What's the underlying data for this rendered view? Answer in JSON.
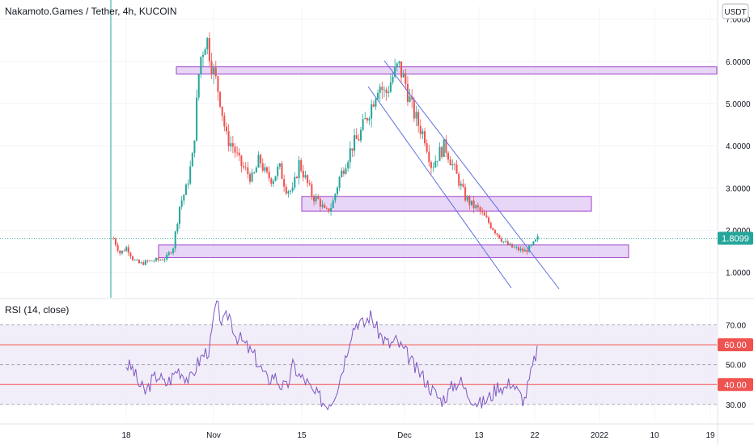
{
  "chart_data": [
    {
      "type": "candlestick",
      "title": "Nakamoto.Games / Tether, 4h, KUCOIN",
      "currency_label": "USDT",
      "last_price": "1.8099",
      "x_ticks": [
        "18",
        "Nov",
        "15",
        "Dec",
        "13",
        "22",
        "2022",
        "10",
        "19"
      ],
      "y_ticks": [
        "1.0000",
        "2.0000",
        "3.0000",
        "4.0000",
        "5.0000",
        "6.0000",
        "7.0000"
      ],
      "ylim": [
        0.4,
        7.3
      ],
      "colors": {
        "up": "#26a69a",
        "down": "#ef5350",
        "zone": "#d6b4f0",
        "zone_border": "#a042c8",
        "trendline": "#5b6fe0",
        "price_tag": "#26a69a"
      },
      "zones": [
        {
          "from": 5.7,
          "to": 5.87
        },
        {
          "from": 2.45,
          "to": 2.8
        },
        {
          "from": 1.35,
          "to": 1.65
        }
      ],
      "price_path": [
        1.8,
        1.45,
        1.6,
        1.3,
        1.2,
        1.25,
        1.28,
        1.3,
        1.35,
        1.6,
        2.6,
        3.0,
        3.8,
        6.0,
        6.6,
        5.8,
        5.2,
        4.2,
        4.0,
        3.6,
        3.4,
        3.2,
        3.7,
        3.3,
        3.2,
        3.5,
        3.0,
        2.9,
        3.6,
        3.2,
        2.8,
        2.7,
        2.4,
        2.6,
        3.2,
        3.6,
        4.0,
        4.2,
        4.6,
        5.0,
        5.5,
        5.2,
        5.6,
        5.9,
        5.5,
        4.9,
        4.5,
        4.2,
        3.5,
        3.8,
        4.0,
        3.6,
        3.2,
        2.8,
        2.6,
        2.5,
        2.3,
        2.1,
        1.9,
        1.7,
        1.6,
        1.55,
        1.5,
        1.6,
        1.8
      ]
    },
    {
      "type": "line",
      "title": "RSI (14, close)",
      "y_ticks": [
        "30.00",
        "50.00",
        "70.00"
      ],
      "levels": [
        "40.00",
        "60.00"
      ],
      "ylim": [
        21,
        82
      ],
      "colors": {
        "line": "#7e57c2",
        "level": "#ef5350",
        "band": "#ede7f6"
      },
      "values": [
        50,
        48,
        40,
        36,
        42,
        45,
        40,
        43,
        48,
        45,
        42,
        50,
        55,
        58,
        82,
        70,
        76,
        65,
        62,
        58,
        54,
        48,
        42,
        45,
        40,
        38,
        50,
        44,
        42,
        36,
        34,
        30,
        32,
        40,
        52,
        66,
        72,
        70,
        75,
        68,
        63,
        60,
        62,
        58,
        54,
        48,
        45,
        40,
        36,
        32,
        35,
        40,
        42,
        36,
        33,
        30,
        32,
        35,
        40,
        38,
        42,
        36,
        32,
        45,
        58
      ]
    }
  ]
}
